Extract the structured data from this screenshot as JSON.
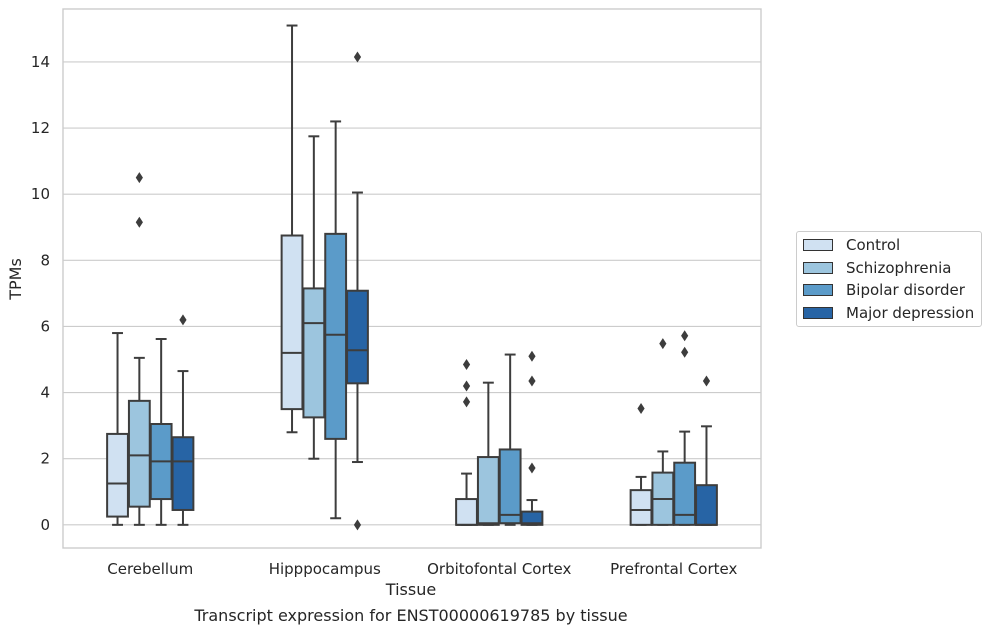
{
  "caption": "Transcript expression for ENST00000619785 by tissue",
  "chart_data": {
    "type": "box",
    "xlabel": "Tissue",
    "ylabel": "TPMs",
    "ylim": [
      -0.7,
      15.6
    ],
    "yticks": [
      0,
      2,
      4,
      6,
      8,
      10,
      12,
      14
    ],
    "grid": "horizontal",
    "legend_position": "right",
    "categories": [
      "Cerebellum",
      "Hipppocampus",
      "Orbitofontal Cortex",
      "Prefrontal Cortex"
    ],
    "series": [
      {
        "name": "Control",
        "color": "#d0e1f2",
        "boxes": [
          {
            "whisker_low": 0,
            "q1": 0.25,
            "median": 1.25,
            "q3": 2.75,
            "whisker_high": 5.8,
            "outliers": []
          },
          {
            "whisker_low": 2.8,
            "q1": 3.5,
            "median": 5.2,
            "q3": 8.75,
            "whisker_high": 15.1,
            "outliers": []
          },
          {
            "whisker_low": 0,
            "q1": 0,
            "median": 0,
            "q3": 0.78,
            "whisker_high": 1.55,
            "outliers": [
              3.72,
              4.2,
              4.85
            ]
          },
          {
            "whisker_low": 0,
            "q1": 0,
            "median": 0.45,
            "q3": 1.05,
            "whisker_high": 1.45,
            "outliers": [
              3.52
            ]
          }
        ]
      },
      {
        "name": "Schizophrenia",
        "color": "#9cc5de",
        "boxes": [
          {
            "whisker_low": 0,
            "q1": 0.55,
            "median": 2.1,
            "q3": 3.75,
            "whisker_high": 5.05,
            "outliers": [
              9.15,
              10.5
            ]
          },
          {
            "whisker_low": 2.0,
            "q1": 3.25,
            "median": 6.1,
            "q3": 7.15,
            "whisker_high": 11.75,
            "outliers": []
          },
          {
            "whisker_low": 0,
            "q1": 0,
            "median": 0.05,
            "q3": 2.05,
            "whisker_high": 4.3,
            "outliers": []
          },
          {
            "whisker_low": 0,
            "q1": 0,
            "median": 0.78,
            "q3": 1.58,
            "whisker_high": 2.22,
            "outliers": [
              5.48
            ]
          }
        ]
      },
      {
        "name": "Bipolar disorder",
        "color": "#5b9bc9",
        "boxes": [
          {
            "whisker_low": 0,
            "q1": 0.78,
            "median": 1.92,
            "q3": 3.05,
            "whisker_high": 5.62,
            "outliers": []
          },
          {
            "whisker_low": 0.2,
            "q1": 2.6,
            "median": 5.75,
            "q3": 8.8,
            "whisker_high": 12.2,
            "outliers": []
          },
          {
            "whisker_low": 0,
            "q1": 0.05,
            "median": 0.3,
            "q3": 2.28,
            "whisker_high": 5.15,
            "outliers": []
          },
          {
            "whisker_low": 0,
            "q1": 0,
            "median": 0.3,
            "q3": 1.88,
            "whisker_high": 2.82,
            "outliers": [
              5.22,
              5.72
            ]
          }
        ]
      },
      {
        "name": "Major depression",
        "color": "#2764a5",
        "boxes": [
          {
            "whisker_low": 0,
            "q1": 0.45,
            "median": 1.92,
            "q3": 2.65,
            "whisker_high": 4.65,
            "outliers": [
              6.2
            ]
          },
          {
            "whisker_low": 1.9,
            "q1": 4.28,
            "median": 5.28,
            "q3": 7.08,
            "whisker_high": 10.05,
            "outliers": [
              0,
              14.15
            ]
          },
          {
            "whisker_low": 0,
            "q1": 0,
            "median": 0.05,
            "q3": 0.4,
            "whisker_high": 0.75,
            "outliers": [
              1.72,
              4.35,
              5.1
            ]
          },
          {
            "whisker_low": 0,
            "q1": 0,
            "median": 0,
            "q3": 1.2,
            "whisker_high": 2.98,
            "outliers": [
              4.35
            ]
          }
        ]
      }
    ]
  }
}
